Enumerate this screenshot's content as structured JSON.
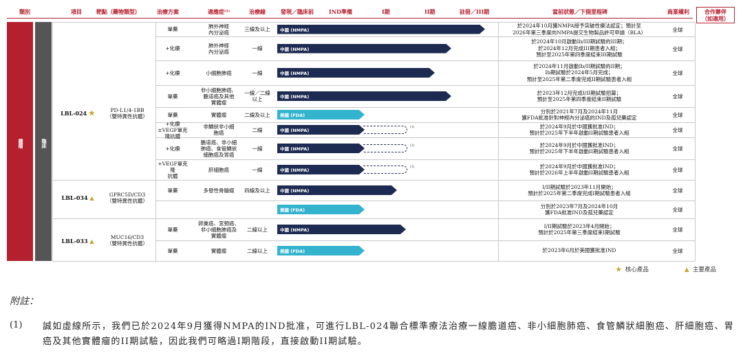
{
  "header": {
    "category": "類別",
    "item": "項目",
    "target": "靶點（藥物類型）",
    "regimen": "治療方案",
    "indication": "適應症⁽¹⁾",
    "line": "治療線",
    "discovery": "發現／臨床前",
    "ind": "IND準備",
    "phase1": "I期",
    "phase2": "II期",
    "pivotal": "註冊／III期",
    "status": "當前狀態／下個里程碑",
    "rights": "商業權利",
    "partner": "合作夥伴\n（如適用）"
  },
  "side": {
    "category": "腫瘤",
    "stage": "臨床"
  },
  "products": [
    {
      "name": "LBL-024",
      "marker": "★",
      "target": "PD-L1/4-1BB\n（雙特異性抗體）"
    },
    {
      "name": "LBL-034",
      "marker": "▲",
      "target": "GPRC5D/CD3\n（雙特異性抗體）"
    },
    {
      "name": "LBL-033",
      "marker": "▲",
      "target": "MUC16/CD3\n（雙特異性抗體）"
    }
  ],
  "rows": [
    {
      "regimen": "單藥",
      "indication": "肺外神經\n內分泌癌",
      "line": "三線及以上",
      "bar": "中國 (NMPA)",
      "status": "於2024年10月獲NMPA授予突破性療法認定；預計至\n2026年第三季度向NMPA提交生物製品許可申請（BLA）",
      "rights": "全球"
    },
    {
      "regimen": "+化療",
      "indication": "肺外神經\n內分泌癌",
      "line": "一線",
      "bar": "中國 (NMPA)",
      "status": "於2024年10月啟動Ib/III期試驗的III期；\n於2024年12月完成III期患者入組；\n預計至2025年第四季度結束III期試驗",
      "rights": "全球"
    },
    {
      "regimen": "+化療",
      "indication": "小細胞肺癌",
      "line": "一線",
      "bar": "中國 (NMPA)",
      "status": "於2024年11月啟動Ib/II期試驗的II期；\nIb期試驗於2024年5月完成；\n預計至2025年第二季度完成II期試驗患者入組",
      "rights": "全球"
    },
    {
      "regimen": "單藥",
      "indication": "非小細胞肺癌、\n膽道癌及其他\n實體瘤",
      "line": "一線／二線\n以上",
      "bar": "中國 (NMPA)",
      "status": "於2023年12月完成I/II期試驗招募；\n預計至2025年第四季度結束II期試驗",
      "rights": "全球"
    },
    {
      "regimen": "單藥",
      "indication": "實體瘤",
      "line": "二線及以上",
      "bar": "美國 (FDA)",
      "status": "分別於2021年7月及2024年11月\n獲FDA批准針對神經內分泌癌的IND及孤兒藥認定",
      "rights": "全球"
    },
    {
      "regimen": "+化療\n±VEGF單克隆抗體",
      "indication": "非鱗狀非小細\n胞癌",
      "line": "二線",
      "bar": "中國 (NMPA)",
      "status": "於2024年9月於中國獲批准IND；\n預計於2025年下半年啟動II期試驗患者入組",
      "rights": "全球"
    },
    {
      "regimen": "+化療",
      "indication": "膽道癌、非小細\n肺癌、食管鱗狀\n細胞癌及胃癌",
      "line": "一線",
      "bar": "中國 (NMPA)",
      "status": "於2024年9月於中國獲批准IND；\n預計於2025年下半年啟動II期試驗患者入組",
      "rights": "全球"
    },
    {
      "regimen": "+VEGF單克隆\n抗體",
      "indication": "肝細胞癌",
      "line": "一線",
      "bar": "中國 (NMPA)",
      "status": "於2024年9月於中國獲批准IND；\n預計於2026年上半年啟動II期試驗患者入組",
      "rights": "全球"
    },
    {
      "regimen": "單藥",
      "indication": "多發性骨髓瘤",
      "line": "四線及以上",
      "bar": "中國 (NMPA)",
      "status": "I/II期試驗於2023年11月開始；\n預計於2025年第二季度完成I期試驗患者入組",
      "rights": "全球"
    },
    {
      "regimen": "",
      "indication": "",
      "line": "",
      "bar": "美國 (FDA)",
      "status": "分別於2023年7月及2024年10月\n獲FDA批准IND及孤兒藥認定",
      "rights": "全球"
    },
    {
      "regimen": "單藥",
      "indication": "卵巢癌、宮頸癌、\n非小細胞肺癌及\n實體瘤",
      "line": "二線以上",
      "bar": "中國 (NMPA)",
      "status": "I/II期試驗於2023年4月開始；\n預計於2025年第三季度結束I期試驗",
      "rights": "全球"
    },
    {
      "regimen": "單藥",
      "indication": "實體瘤",
      "line": "二線以上",
      "bar": "美國 (FDA)",
      "status": "於2023年6月於美國獲批准IND",
      "rights": "全球"
    }
  ],
  "sup": "(1)",
  "legend": {
    "core": "核心產品",
    "key": "主要產品"
  },
  "footnote": {
    "title": "附註：",
    "num": "(1)",
    "text": "誠如虛線所示，我們已於2024年9月獲得NMPA的IND批准，可進行LBL-024聯合標準療法治療一線膽道癌、非小細胞肺癌、食管鱗狀細胞癌、肝細胞癌、胃癌及其他實體瘤的II期試驗，因此我們可略過I期階段，直接啟動II期試驗。"
  },
  "colors": {
    "accent": "#b5202e",
    "nmpa": "#1d2a52",
    "fda": "#34b3cf",
    "marker": "#c9a227"
  }
}
